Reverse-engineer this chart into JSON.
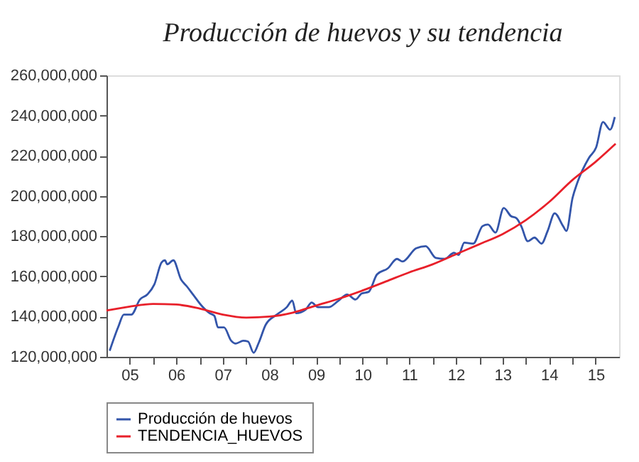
{
  "chart_data": {
    "type": "line",
    "title": "Producción de huevos y su tendencia",
    "xlim": [
      "2005-01-01",
      "2016-01-01"
    ],
    "xticks": [
      {
        "value": "2005-07-01",
        "label": "05"
      },
      {
        "value": "2006-01-01",
        "label": null
      },
      {
        "value": "2006-07-01",
        "label": "06"
      },
      {
        "value": "2007-01-01",
        "label": null
      },
      {
        "value": "2007-07-01",
        "label": "07"
      },
      {
        "value": "2008-01-01",
        "label": null
      },
      {
        "value": "2008-07-01",
        "label": "08"
      },
      {
        "value": "2009-01-01",
        "label": null
      },
      {
        "value": "2009-07-01",
        "label": "09"
      },
      {
        "value": "2010-01-01",
        "label": null
      },
      {
        "value": "2010-07-01",
        "label": "10"
      },
      {
        "value": "2011-01-01",
        "label": null
      },
      {
        "value": "2011-07-01",
        "label": "11"
      },
      {
        "value": "2012-01-01",
        "label": null
      },
      {
        "value": "2012-07-01",
        "label": "12"
      },
      {
        "value": "2013-01-01",
        "label": null
      },
      {
        "value": "2013-07-01",
        "label": "13"
      },
      {
        "value": "2014-01-01",
        "label": null
      },
      {
        "value": "2014-07-01",
        "label": "14"
      },
      {
        "value": "2015-01-01",
        "label": null
      },
      {
        "value": "2015-07-01",
        "label": "15"
      }
    ],
    "ylim": [
      120000000,
      260000000
    ],
    "yticks": [
      {
        "value": 120000000,
        "label": "120,000,000"
      },
      {
        "value": 140000000,
        "label": "140,000,000"
      },
      {
        "value": 160000000,
        "label": "160,000,000"
      },
      {
        "value": 180000000,
        "label": "180,000,000"
      },
      {
        "value": 200000000,
        "label": "200,000,000"
      },
      {
        "value": 220000000,
        "label": "220,000,000"
      },
      {
        "value": 240000000,
        "label": "240,000,000"
      },
      {
        "value": 260000000,
        "label": "260,000,000"
      }
    ],
    "grid": false,
    "legend": "bottom",
    "line_style": "solid",
    "series": [
      {
        "name": "Producción de huevos",
        "color": "#3355aa",
        "x": [
          "2005-01-26",
          "2005-04-04",
          "2005-05-17",
          "2005-07-15",
          "2005-09-20",
          "2005-11-17",
          "2006-01-11",
          "2006-03-09",
          "2006-04-04",
          "2006-04-22",
          "2006-06-09",
          "2006-08-07",
          "2006-09-23",
          "2006-11-10",
          "2007-01-22",
          "2007-03-20",
          "2007-04-26",
          "2007-05-25",
          "2007-07-11",
          "2007-09-05",
          "2007-10-11",
          "2007-12-09",
          "2008-01-15",
          "2008-02-28",
          "2008-04-08",
          "2008-06-02",
          "2008-08-28",
          "2008-11-14",
          "2008-12-27",
          "2009-01-26",
          "2009-04-11",
          "2009-05-28",
          "2009-07-15",
          "2009-10-08",
          "2009-12-20",
          "2010-03-02",
          "2010-05-07",
          "2010-06-23",
          "2010-08-17",
          "2010-10-22",
          "2011-01-15",
          "2011-03-27",
          "2011-05-10",
          "2011-08-25",
          "2011-11-07",
          "2012-01-26",
          "2012-04-04",
          "2012-06-16",
          "2012-07-22",
          "2012-09-05",
          "2012-11-14",
          "2013-01-26",
          "2013-03-09",
          "2013-05-07",
          "2013-07-11",
          "2013-09-05",
          "2013-10-19",
          "2013-11-25",
          "2014-01-15",
          "2014-03-09",
          "2014-05-03",
          "2014-06-20",
          "2014-08-14",
          "2014-10-19",
          "2014-11-14",
          "2015-01-01",
          "2015-02-07",
          "2015-05-10",
          "2015-07-04",
          "2015-08-28",
          "2015-10-22",
          "2015-11-28"
        ],
        "values": [
          123000000,
          135000000,
          141000000,
          141000000,
          148500000,
          151000000,
          156000000,
          167000000,
          168000000,
          166000000,
          168000000,
          158600000,
          155000000,
          151000000,
          145000000,
          141700000,
          140400000,
          134600000,
          134600000,
          128000000,
          126600000,
          128000000,
          127600000,
          122000000,
          127000000,
          136000000,
          141000000,
          144700000,
          148000000,
          141700000,
          143500000,
          147000000,
          144700000,
          144700000,
          147700000,
          151000000,
          148500000,
          151500000,
          152300000,
          161000000,
          164000000,
          168700000,
          167400000,
          174000000,
          175000000,
          169200000,
          168700000,
          171700000,
          170700000,
          176800000,
          176300000,
          185000000,
          185800000,
          181800000,
          194000000,
          190000000,
          188900000,
          185000000,
          177500000,
          179300000,
          176300000,
          182600000,
          191400000,
          185000000,
          182600000,
          199000000,
          206500000,
          219000000,
          224000000,
          236800000,
          233000000,
          239300000
        ]
      },
      {
        "name": "TENDENCIA_HUEVOS",
        "color": "#e8202a",
        "x": [
          "2005-01-01",
          "2005-07-01",
          "2006-01-01",
          "2006-07-01",
          "2007-01-01",
          "2007-07-01",
          "2008-01-01",
          "2008-07-01",
          "2009-01-01",
          "2009-07-01",
          "2010-01-01",
          "2010-07-01",
          "2011-01-01",
          "2011-07-01",
          "2012-01-01",
          "2012-07-01",
          "2013-01-01",
          "2013-07-01",
          "2014-01-01",
          "2014-07-01",
          "2015-01-01",
          "2015-07-01",
          "2015-12-05"
        ],
        "values": [
          143000000,
          145000000,
          146300000,
          146000000,
          144000000,
          141000000,
          139500000,
          140000000,
          142000000,
          145500000,
          149000000,
          153000000,
          157500000,
          162000000,
          166000000,
          171000000,
          176000000,
          181000000,
          188000000,
          197000000,
          208000000,
          217000000,
          226000000
        ]
      }
    ]
  }
}
